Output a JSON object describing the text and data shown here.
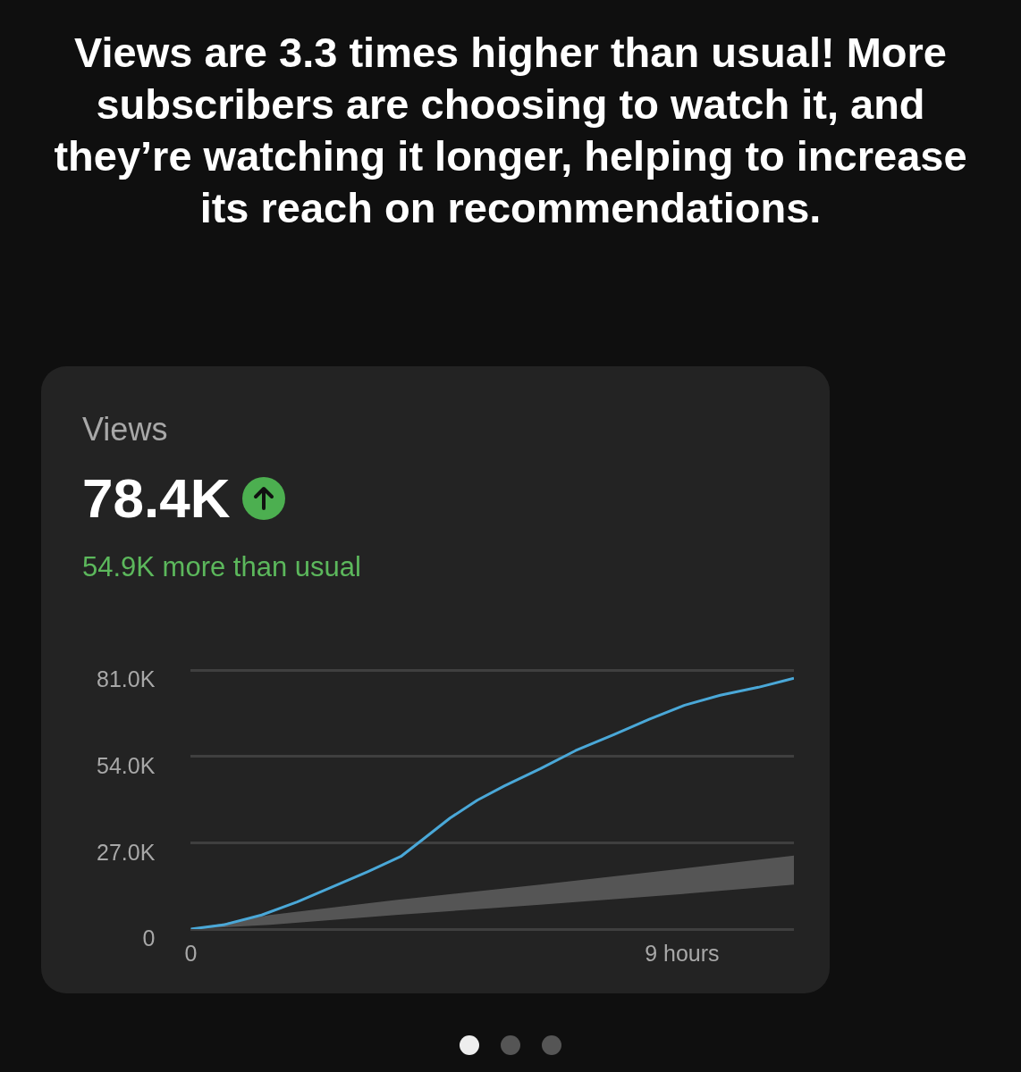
{
  "chart_data": {
    "type": "line",
    "title": "Views are 3.3 times higher than usual! More subscribers are choosing to watch it, and they’re watching it longer, helping to increase its reach on recommendations.",
    "subtitle": "Views",
    "annotations": [
      "78.4K",
      "54.9K more than usual"
    ],
    "x": [
      0,
      0.6,
      1.3,
      1.95,
      2.6,
      3.25,
      3.85,
      4.25,
      4.75,
      5.25,
      5.75,
      6.4,
      7.05,
      7.75,
      8.4,
      9.05,
      9.7,
      10.4,
      11.05
    ],
    "series": [
      {
        "color": "#4aa8d8",
        "values": [
          0,
          1.3,
          4.4,
          8.5,
          13.2,
          18,
          22.7,
          28,
          34.7,
          40.3,
          44.8,
          50.1,
          55.8,
          60.8,
          65.6,
          70,
          73.1,
          75.6,
          78.4
        ]
      },
      {
        "type": "area",
        "color": "#555555",
        "x": [
          0,
          1.45,
          3.75,
          6.4,
          9.05,
          11.05
        ],
        "values": [
          null,
          null,
          null,
          null,
          null,
          null
        ],
        "lower": [
          0,
          1.3,
          4.4,
          7.6,
          11,
          13.9
        ],
        "upper": [
          0,
          4.4,
          9.1,
          13.9,
          19,
          23
        ]
      }
    ],
    "xlim": [
      0,
      11.05
    ],
    "xticks": [
      {
        "value": 0,
        "label": "0"
      },
      {
        "value": 9,
        "label": "9 hours"
      }
    ],
    "ylim": [
      0,
      81
    ],
    "yticks": [
      {
        "value": 0,
        "label": "0"
      },
      {
        "value": 27,
        "label": "27.0K"
      },
      {
        "value": 54,
        "label": "54.0K"
      },
      {
        "value": 81,
        "label": "81.0K"
      }
    ],
    "grid": "y",
    "legend": false
  }
}
